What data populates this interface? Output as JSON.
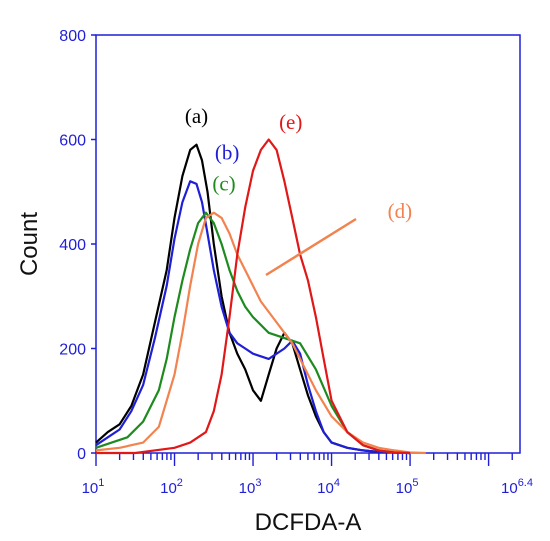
{
  "chart_data": {
    "type": "line",
    "xlabel": "DCFDA-A",
    "ylabel": "Count",
    "x_scale": "log10",
    "xlim": [
      1,
      6.4
    ],
    "ylim": [
      0,
      800
    ],
    "y_ticks": [
      "0",
      "200",
      "400",
      "600",
      "800"
    ],
    "x_ticks": [
      {
        "base": "10",
        "exp": "1"
      },
      {
        "base": "10",
        "exp": "2"
      },
      {
        "base": "10",
        "exp": "3"
      },
      {
        "base": "10",
        "exp": "4"
      },
      {
        "base": "10",
        "exp": "5"
      },
      {
        "base": "10",
        "exp": "6.4"
      }
    ],
    "series": [
      {
        "name": "(a)",
        "color": "#000000",
        "x": [
          1.0,
          1.15,
          1.3,
          1.45,
          1.6,
          1.75,
          1.9,
          2.0,
          2.1,
          2.2,
          2.28,
          2.35,
          2.42,
          2.5,
          2.6,
          2.7,
          2.8,
          2.9,
          3.0,
          3.1,
          3.2,
          3.3,
          3.4,
          3.5,
          3.6,
          3.7,
          3.8,
          3.9,
          4.0,
          4.2,
          4.4,
          4.6,
          4.8,
          5.0
        ],
        "y": [
          20,
          40,
          55,
          90,
          150,
          250,
          350,
          450,
          530,
          580,
          590,
          560,
          500,
          400,
          300,
          230,
          190,
          160,
          120,
          100,
          150,
          200,
          230,
          210,
          160,
          110,
          70,
          40,
          20,
          10,
          5,
          2,
          1,
          0
        ]
      },
      {
        "name": "(b)",
        "color": "#1f1fd6",
        "x": [
          1.0,
          1.15,
          1.3,
          1.45,
          1.6,
          1.75,
          1.9,
          2.0,
          2.1,
          2.2,
          2.28,
          2.35,
          2.42,
          2.5,
          2.6,
          2.7,
          2.8,
          2.9,
          3.0,
          3.2,
          3.4,
          3.5,
          3.6,
          3.7,
          3.8,
          3.9,
          4.0,
          4.2,
          4.4,
          4.6,
          4.8,
          5.0
        ],
        "y": [
          15,
          30,
          45,
          80,
          130,
          220,
          320,
          410,
          480,
          520,
          515,
          480,
          420,
          350,
          280,
          230,
          210,
          200,
          190,
          180,
          200,
          215,
          190,
          130,
          80,
          40,
          20,
          10,
          5,
          2,
          1,
          0
        ]
      },
      {
        "name": "(c)",
        "color": "#1e8b1e",
        "x": [
          1.0,
          1.2,
          1.4,
          1.6,
          1.8,
          1.9,
          2.0,
          2.1,
          2.2,
          2.3,
          2.4,
          2.5,
          2.6,
          2.7,
          2.8,
          2.9,
          3.0,
          3.2,
          3.4,
          3.6,
          3.8,
          4.0,
          4.2,
          4.4,
          4.6,
          4.8,
          5.0
        ],
        "y": [
          10,
          20,
          30,
          60,
          120,
          180,
          260,
          330,
          390,
          440,
          460,
          440,
          400,
          350,
          310,
          280,
          260,
          230,
          220,
          210,
          160,
          90,
          40,
          15,
          5,
          1,
          0
        ]
      },
      {
        "name": "(d)",
        "color": "#f2834f",
        "x": [
          1.0,
          1.3,
          1.6,
          1.8,
          2.0,
          2.1,
          2.2,
          2.3,
          2.4,
          2.5,
          2.6,
          2.7,
          2.8,
          2.9,
          3.0,
          3.1,
          3.2,
          3.3,
          3.4,
          3.5,
          3.6,
          3.8,
          4.0,
          4.2,
          4.4,
          4.6,
          4.8,
          5.0,
          5.2
        ],
        "y": [
          5,
          10,
          20,
          50,
          150,
          230,
          320,
          400,
          450,
          460,
          450,
          420,
          380,
          350,
          320,
          290,
          270,
          250,
          230,
          210,
          180,
          120,
          70,
          40,
          20,
          10,
          5,
          1,
          0
        ]
      },
      {
        "name": "(e)",
        "color": "#e01818",
        "x": [
          1.0,
          1.5,
          2.0,
          2.2,
          2.4,
          2.5,
          2.6,
          2.7,
          2.8,
          2.9,
          3.0,
          3.1,
          3.2,
          3.3,
          3.4,
          3.5,
          3.6,
          3.7,
          3.8,
          3.9,
          4.0,
          4.2,
          4.4,
          4.6,
          4.8,
          5.0
        ],
        "y": [
          0,
          0,
          10,
          20,
          40,
          80,
          150,
          260,
          380,
          470,
          540,
          580,
          600,
          580,
          520,
          450,
          380,
          330,
          260,
          180,
          100,
          40,
          15,
          5,
          1,
          0
        ]
      }
    ],
    "annotations": [
      {
        "text": "(a)",
        "color": "#000000",
        "x": 2.28,
        "y": 632
      },
      {
        "text": "(b)",
        "color": "#1f1fd6",
        "x": 2.67,
        "y": 562
      },
      {
        "text": "(c)",
        "color": "#1e8b1e",
        "x": 2.63,
        "y": 502
      },
      {
        "text": "(d)",
        "color": "#f2834f",
        "x": 4.87,
        "y": 450
      },
      {
        "text": "(e)",
        "color": "#e01818",
        "x": 3.48,
        "y": 620
      }
    ]
  }
}
